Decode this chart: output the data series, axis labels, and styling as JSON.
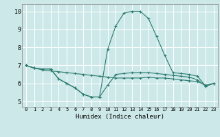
{
  "xlabel": "Humidex (Indice chaleur)",
  "bg_color": "#cce8e8",
  "grid_color": "#ffffff",
  "line_color": "#2a7a6e",
  "xlim": [
    -0.5,
    23.5
  ],
  "ylim": [
    4.7,
    10.4
  ],
  "yticks": [
    5,
    6,
    7,
    8,
    9,
    10
  ],
  "xticks": [
    0,
    1,
    2,
    3,
    4,
    5,
    6,
    7,
    8,
    9,
    10,
    11,
    12,
    13,
    14,
    15,
    16,
    17,
    18,
    19,
    20,
    21,
    22,
    23
  ],
  "line1_x": [
    0,
    1,
    2,
    3,
    4,
    5,
    6,
    7,
    8,
    9,
    10,
    11,
    12,
    13,
    14,
    15,
    16,
    17,
    18,
    19,
    20,
    21,
    22,
    23
  ],
  "line1_y": [
    7.0,
    6.85,
    6.8,
    6.8,
    6.25,
    6.0,
    5.75,
    5.4,
    5.25,
    5.25,
    5.9,
    6.5,
    6.55,
    6.6,
    6.6,
    6.6,
    6.55,
    6.5,
    6.45,
    6.4,
    6.35,
    6.2,
    5.85,
    6.0
  ],
  "line2_x": [
    0,
    1,
    2,
    3,
    4,
    5,
    6,
    7,
    8,
    9,
    10,
    11,
    12,
    13,
    14,
    15,
    16,
    17,
    18,
    19,
    20,
    21,
    22,
    23
  ],
  "line2_y": [
    7.0,
    6.85,
    6.8,
    6.8,
    6.25,
    6.0,
    5.75,
    5.4,
    5.25,
    5.25,
    7.9,
    9.2,
    9.9,
    10.0,
    10.0,
    9.6,
    8.6,
    7.55,
    6.6,
    6.55,
    6.5,
    6.4,
    5.85,
    6.0
  ],
  "line3_x": [
    0,
    1,
    2,
    3,
    4,
    5,
    6,
    7,
    8,
    9,
    10,
    11,
    12,
    13,
    14,
    15,
    16,
    17,
    18,
    19,
    20,
    21,
    22,
    23
  ],
  "line3_y": [
    7.0,
    6.85,
    6.75,
    6.7,
    6.65,
    6.6,
    6.55,
    6.5,
    6.45,
    6.4,
    6.35,
    6.3,
    6.3,
    6.3,
    6.3,
    6.35,
    6.3,
    6.3,
    6.25,
    6.2,
    6.15,
    6.1,
    5.9,
    6.0
  ]
}
